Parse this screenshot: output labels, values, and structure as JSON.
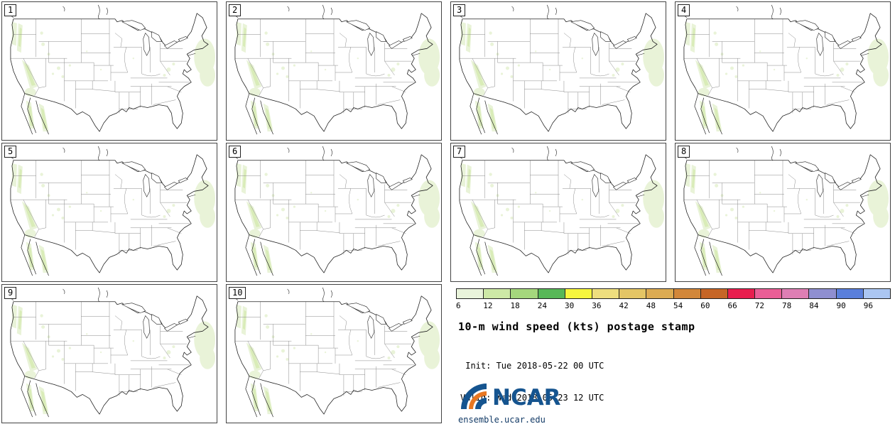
{
  "panels": [
    {
      "label": "1"
    },
    {
      "label": "2"
    },
    {
      "label": "3"
    },
    {
      "label": "4"
    },
    {
      "label": "5"
    },
    {
      "label": "6"
    },
    {
      "label": "7"
    },
    {
      "label": "8"
    },
    {
      "label": "9"
    },
    {
      "label": "10"
    }
  ],
  "legend": {
    "ticks": [
      "6",
      "12",
      "18",
      "24",
      "30",
      "36",
      "42",
      "48",
      "54",
      "60",
      "66",
      "72",
      "78",
      "84",
      "90",
      "96"
    ],
    "colors": [
      "#e9f4db",
      "#cde9a6",
      "#a5d77d",
      "#57b757",
      "#f6f63e",
      "#eede7e",
      "#e4c565",
      "#dcab52",
      "#d2873a",
      "#c66526",
      "#e81e4e",
      "#ea5e96",
      "#de7fb4",
      "#8f8fd0",
      "#5a7fdb",
      "#abc6f2"
    ]
  },
  "info": {
    "title": "10-m wind speed (kts) postage stamp",
    "init_line": " Init: Tue 2018-05-22 00 UTC",
    "valid_line": "Valid: Wed 2018-05-23 12 UTC"
  },
  "branding": {
    "logo_text": "NCAR",
    "site": "ensemble.ucar.edu",
    "logo_blue": "#15548f",
    "logo_orange": "#e87722"
  }
}
